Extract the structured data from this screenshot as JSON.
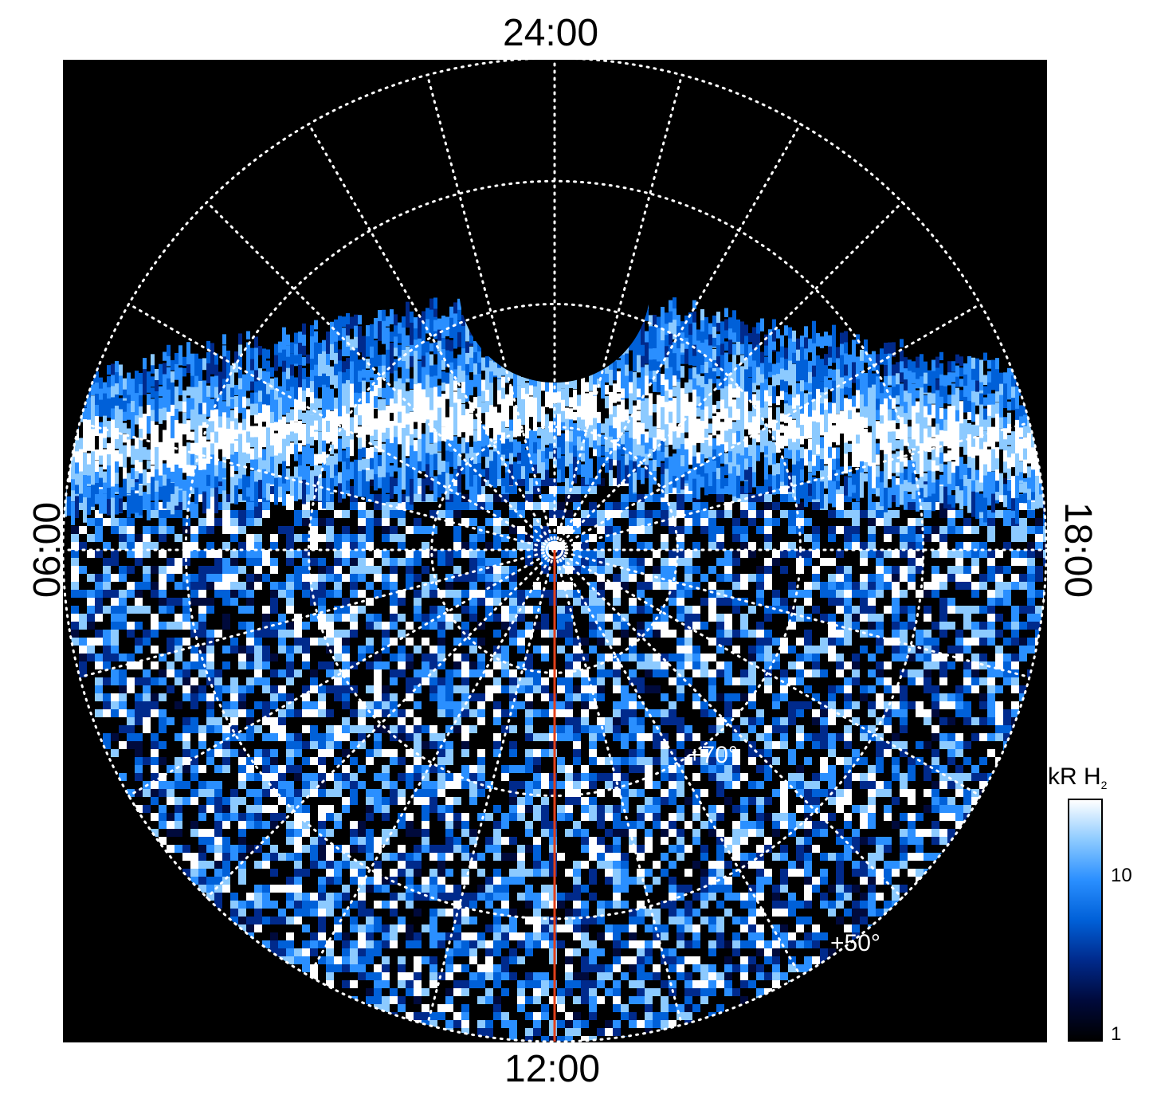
{
  "local_time_labels": {
    "top": "24:00",
    "bottom": "12:00",
    "left": "06:00",
    "right": "18:00"
  },
  "latitude_labels": [
    "+70°",
    "+50°"
  ],
  "colorbar": {
    "title": "kR H",
    "title_subscript": "2",
    "tick_labels": [
      "10",
      "1"
    ],
    "scale": "log",
    "range": [
      1,
      30
    ],
    "colors": [
      "#000000",
      "#000a3c",
      "#002a8c",
      "#0060d8",
      "#2a8fff",
      "#8ccaff",
      "#ffffff"
    ]
  },
  "colors": {
    "background": "#000000",
    "grid": "#ffffff",
    "meridian_line": "#e2401a"
  },
  "chart_data": {
    "type": "heatmap",
    "projection": "polar",
    "local_time_axis": [
      "24:00",
      "06:00",
      "12:00",
      "18:00"
    ],
    "latitude_circles_deg": [
      90,
      80,
      70,
      60,
      50
    ],
    "meridians_hours": [
      0,
      1,
      2,
      3,
      4,
      5,
      6,
      7,
      8,
      9,
      10,
      11,
      12,
      13,
      14,
      15,
      16,
      17,
      18,
      19,
      20,
      21,
      22,
      23
    ],
    "value_unit": "kR H2",
    "value_range": [
      1,
      30
    ],
    "color_scale": "log",
    "features": {
      "auroral_oval_peak_intensity_kR": 30,
      "polar_cap_background_kR": 1,
      "dayside_noise_level_kR": 10
    },
    "highlighted_meridian": "12:00"
  }
}
